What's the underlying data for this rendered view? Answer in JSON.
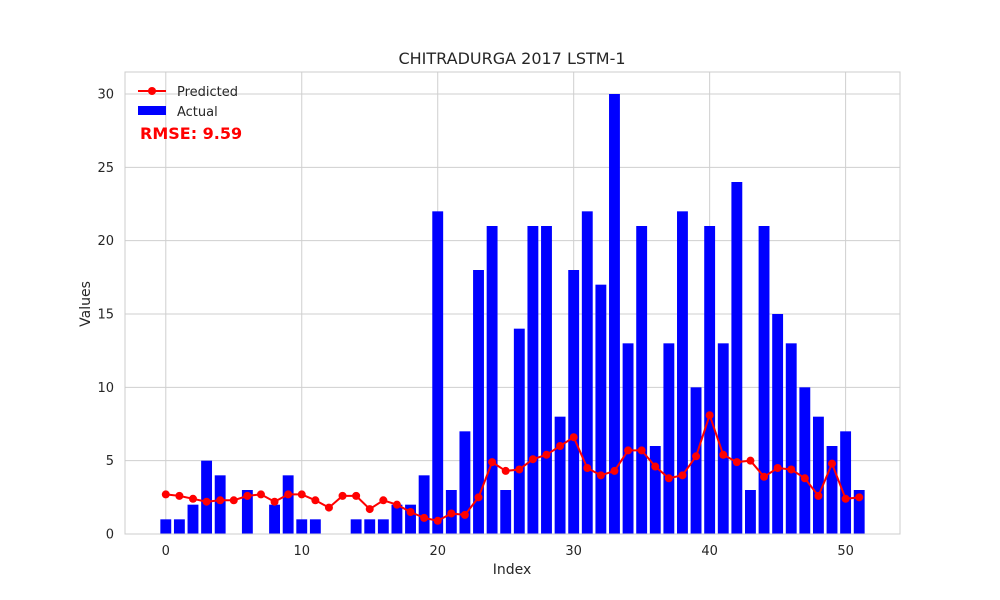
{
  "colors": {
    "background": "#ffffff",
    "plot_background": "#ffffff",
    "grid": "#cfcfcf",
    "spine": "#cccccc",
    "actual": "#0000ff",
    "predicted": "#ff0000",
    "rmse": "#ff0000"
  },
  "chart_data": {
    "type": "bar",
    "title": "CHITRADURGA 2017 LSTM-1",
    "xlabel": "Index",
    "ylabel": "Values",
    "xlim": [
      -3,
      54
    ],
    "ylim": [
      0,
      31.5
    ],
    "xticks": [
      0,
      10,
      20,
      30,
      40,
      50
    ],
    "yticks": [
      0,
      5,
      10,
      15,
      20,
      25,
      30
    ],
    "grid": true,
    "legend_position": "top-left",
    "annotation": "RMSE: 9.59",
    "x": [
      0,
      1,
      2,
      3,
      4,
      5,
      6,
      7,
      8,
      9,
      10,
      11,
      12,
      13,
      14,
      15,
      16,
      17,
      18,
      19,
      20,
      21,
      22,
      23,
      24,
      25,
      26,
      27,
      28,
      29,
      30,
      31,
      32,
      33,
      34,
      35,
      36,
      37,
      38,
      39,
      40,
      41,
      42,
      43,
      44,
      45,
      46,
      47,
      48,
      49,
      50,
      51
    ],
    "series": [
      {
        "name": "Actual",
        "kind": "bar",
        "values": [
          1,
          1,
          2,
          5,
          4,
          0,
          3,
          0,
          2,
          4,
          1,
          1,
          0,
          0,
          1,
          1,
          1,
          2,
          2,
          4,
          22,
          3,
          7,
          18,
          21,
          3,
          14,
          21,
          21,
          8,
          18,
          22,
          17,
          30,
          13,
          21,
          6,
          13,
          22,
          10,
          21,
          13,
          24,
          3,
          21,
          15,
          13,
          10,
          8,
          6,
          7,
          3
        ]
      },
      {
        "name": "Predicted",
        "kind": "line",
        "values": [
          2.7,
          2.6,
          2.4,
          2.2,
          2.3,
          2.3,
          2.6,
          2.7,
          2.2,
          2.7,
          2.7,
          2.3,
          1.8,
          2.6,
          2.6,
          1.7,
          2.3,
          2.0,
          1.5,
          1.1,
          0.9,
          1.4,
          1.3,
          2.5,
          4.9,
          4.3,
          4.4,
          5.1,
          5.4,
          6.0,
          6.6,
          4.5,
          4.0,
          4.3,
          5.7,
          5.7,
          4.6,
          3.8,
          4.0,
          5.3,
          8.1,
          5.4,
          4.9,
          5.0,
          3.9,
          4.5,
          4.4,
          3.8,
          2.6,
          4.8,
          2.4,
          2.5
        ]
      }
    ]
  }
}
